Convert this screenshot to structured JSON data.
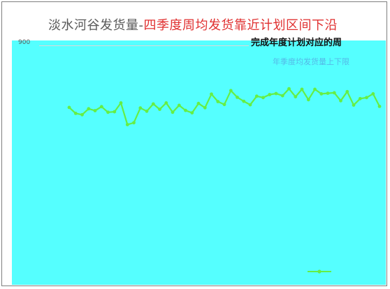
{
  "header": {
    "title_part1": "淡水河谷发货量-",
    "title_part2": "四季度周均发货靠近计划区间下沿"
  },
  "legend": {
    "line1": "完成年度计划对应的周",
    "line2": "年季度均发货量上下限"
  },
  "colors": {
    "plot_background": "#55ffff",
    "series_line": "#66ee44",
    "series_marker": "#66ee44",
    "title_red": "#e03030",
    "title_gray": "#595959"
  },
  "chart_data": {
    "type": "line",
    "title": "淡水河谷发货量-四季度周均发货靠近计划区间下沿",
    "y_tick_labels": [
      "900"
    ],
    "ylim": [
      0,
      900
    ],
    "grid": true,
    "legend_position": "top-right",
    "series": [
      {
        "values": [
          668,
          646,
          641,
          663,
          656,
          671,
          650,
          652,
          685,
          604,
          611,
          666,
          654,
          681,
          661,
          685,
          650,
          676,
          657,
          648,
          683,
          667,
          718,
          690,
          679,
          731,
          706,
          691,
          678,
          710,
          705,
          716,
          720,
          712,
          738,
          708,
          736,
          697,
          736,
          719,
          721,
          723,
          693,
          727,
          677,
          701,
          705,
          719,
          672
        ]
      }
    ]
  }
}
